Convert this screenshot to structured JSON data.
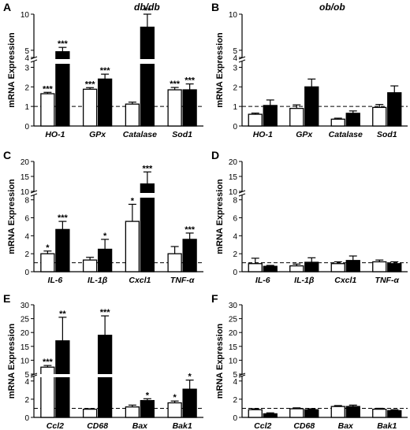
{
  "columns": {
    "left_title": "db/db",
    "right_title": "ob/ob"
  },
  "chart_data": [
    {
      "panel": "A",
      "type": "bar",
      "column": "db/db",
      "ylabel": "mRNA Expression",
      "categories": [
        "HO-1",
        "GPx",
        "Catalase",
        "Sod1"
      ],
      "y_ticks": [
        0,
        1,
        2,
        3,
        4,
        5,
        10
      ],
      "axis_break": [
        3.3,
        4
      ],
      "baseline": 1,
      "series": [
        {
          "fill": "open",
          "values": [
            1.65,
            1.88,
            1.12,
            1.85
          ],
          "errors": [
            0.07,
            0.08,
            0.1,
            0.12
          ],
          "labels": [
            "***",
            "***",
            "",
            "***"
          ]
        },
        {
          "fill": "solid",
          "values": [
            4.8,
            2.4,
            8.2,
            1.85
          ],
          "errors": [
            0.6,
            0.25,
            2.0,
            0.3
          ],
          "labels": [
            "***",
            "***",
            "**",
            "***"
          ]
        }
      ]
    },
    {
      "panel": "B",
      "type": "bar",
      "column": "ob/ob",
      "ylabel": "mRNA Expression",
      "categories": [
        "HO-1",
        "GPx",
        "Catalase",
        "Sod1"
      ],
      "y_ticks": [
        0,
        1,
        2,
        3,
        4,
        5,
        10
      ],
      "axis_break": [
        3.3,
        4
      ],
      "baseline": 1,
      "series": [
        {
          "fill": "open",
          "values": [
            0.6,
            0.9,
            0.35,
            0.95
          ],
          "errors": [
            0.06,
            0.18,
            0.05,
            0.15
          ],
          "labels": [
            "",
            "",
            "",
            ""
          ]
        },
        {
          "fill": "solid",
          "values": [
            1.05,
            2.0,
            0.65,
            1.7
          ],
          "errors": [
            0.28,
            0.4,
            0.12,
            0.35
          ],
          "labels": [
            "",
            "",
            "",
            ""
          ]
        }
      ]
    },
    {
      "panel": "C",
      "type": "bar",
      "column": "db/db",
      "ylabel": "mRNA Expression",
      "categories": [
        "IL-6",
        "IL-1β",
        "Cxcl1",
        "TNF-α"
      ],
      "y_ticks": [
        0,
        2,
        4,
        6,
        8,
        10,
        15,
        20
      ],
      "axis_break": [
        8.5,
        10
      ],
      "baseline": 1,
      "series": [
        {
          "fill": "open",
          "values": [
            2.0,
            1.3,
            5.6,
            2.0
          ],
          "errors": [
            0.3,
            0.3,
            1.9,
            0.8
          ],
          "labels": [
            "*",
            "",
            "*",
            ""
          ]
        },
        {
          "fill": "solid",
          "values": [
            4.7,
            2.5,
            12.5,
            3.6
          ],
          "errors": [
            0.9,
            1.1,
            4.0,
            0.7
          ],
          "labels": [
            "***",
            "*",
            "***",
            "***"
          ]
        }
      ]
    },
    {
      "panel": "D",
      "type": "bar",
      "column": "ob/ob",
      "ylabel": "mRNA Expression",
      "categories": [
        "IL-6",
        "IL-1β",
        "Cxcl1",
        "TNF-α"
      ],
      "y_ticks": [
        0,
        2,
        4,
        6,
        8,
        10,
        15,
        20
      ],
      "axis_break": [
        8.5,
        10
      ],
      "baseline": 1,
      "series": [
        {
          "fill": "open",
          "values": [
            0.9,
            0.65,
            0.9,
            1.1
          ],
          "errors": [
            0.6,
            0.2,
            0.2,
            0.2
          ],
          "labels": [
            "",
            "",
            "",
            ""
          ]
        },
        {
          "fill": "solid",
          "values": [
            0.6,
            1.05,
            1.25,
            0.9
          ],
          "errors": [
            0.1,
            0.5,
            0.5,
            0.2
          ],
          "labels": [
            "",
            "",
            "",
            ""
          ]
        }
      ]
    },
    {
      "panel": "E",
      "type": "bar",
      "column": "db/db",
      "ylabel": "mRNA Expression",
      "categories": [
        "Ccl2",
        "CD68",
        "Bax",
        "Bak1"
      ],
      "y_ticks": [
        0,
        2,
        4,
        5,
        10,
        15,
        20,
        25,
        30
      ],
      "axis_break": [
        4.5,
        5
      ],
      "baseline": 1,
      "series": [
        {
          "fill": "open",
          "values": [
            7.5,
            0.9,
            1.15,
            1.6
          ],
          "errors": [
            0.6,
            0.05,
            0.2,
            0.2
          ],
          "labels": [
            "***",
            "",
            "",
            "*"
          ]
        },
        {
          "fill": "solid",
          "values": [
            17.0,
            19.0,
            1.85,
            3.1
          ],
          "errors": [
            8.5,
            7.0,
            0.2,
            1.0
          ],
          "labels": [
            "**",
            "***",
            "*",
            "*"
          ]
        }
      ]
    },
    {
      "panel": "F",
      "type": "bar",
      "column": "ob/ob",
      "ylabel": "mRNA Expression",
      "categories": [
        "Ccl2",
        "CD68",
        "Bax",
        "Bak1"
      ],
      "y_ticks": [
        0,
        2,
        4,
        5,
        10,
        15,
        20,
        25,
        30
      ],
      "axis_break": [
        4.5,
        5
      ],
      "baseline": 1,
      "series": [
        {
          "fill": "open",
          "values": [
            0.85,
            0.95,
            1.2,
            0.9
          ],
          "errors": [
            0.1,
            0.1,
            0.1,
            0.1
          ],
          "labels": [
            "",
            "",
            "",
            ""
          ]
        },
        {
          "fill": "solid",
          "values": [
            0.4,
            0.85,
            1.2,
            0.75
          ],
          "errors": [
            0.1,
            0.1,
            0.15,
            0.1
          ],
          "labels": [
            "",
            "",
            "",
            ""
          ]
        }
      ]
    }
  ]
}
